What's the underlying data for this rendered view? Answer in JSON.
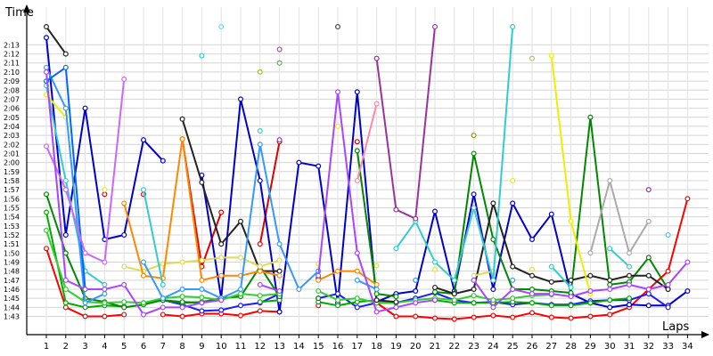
{
  "chart_data": {
    "type": "line",
    "ylabel": "Time",
    "xlabel": "Laps",
    "x": [
      1,
      2,
      3,
      4,
      5,
      6,
      7,
      8,
      9,
      10,
      11,
      12,
      13,
      14,
      15,
      16,
      17,
      18,
      19,
      20,
      21,
      22,
      23,
      24,
      25,
      26,
      27,
      28,
      29,
      30,
      31,
      32,
      33,
      34
    ],
    "x_ticks": [
      "1",
      "2",
      "3",
      "4",
      "5",
      "6",
      "7",
      "8",
      "9",
      "10",
      "11",
      "12",
      "13",
      "14",
      "15",
      "16",
      "17",
      "18",
      "19",
      "20",
      "21",
      "22",
      "23",
      "24",
      "25",
      "26",
      "27",
      "28",
      "29",
      "30",
      "31",
      "32",
      "33",
      "34"
    ],
    "y_ticks": [
      "1:43",
      "1:44",
      "1:45",
      "1:46",
      "1:47",
      "1:48",
      "1:49",
      "1:50",
      "1:51",
      "1:52",
      "1:53",
      "1:54",
      "1:55",
      "1:56",
      "1:57",
      "1:58",
      "1:59",
      "2:00",
      "2:01",
      "2:02",
      "2:03",
      "2:04",
      "2:05",
      "2:06",
      "2:07",
      "2:08",
      "2:09",
      "2:10",
      "2:11",
      "2:12",
      "2:13"
    ],
    "ylim_seconds": [
      102,
      134
    ],
    "grid": true,
    "series": [
      {
        "color": "#ff0000",
        "values": [
          110.5,
          104,
          103,
          103,
          103.2,
          null,
          103.2,
          103,
          103.3,
          103.3,
          103.1,
          103.6,
          103.5,
          null,
          104.2,
          null,
          null,
          104.5,
          103,
          103,
          102.8,
          102.7,
          102.9,
          103.1,
          102.9,
          103.4,
          102.9,
          102.8,
          103,
          103.2,
          104,
          106,
          108,
          116
        ]
      },
      {
        "color": "#e00000",
        "values": [
          null,
          null,
          null,
          116.5,
          null,
          116.5,
          null,
          122.6,
          108.5,
          114.5,
          null,
          111,
          122.3,
          null,
          null,
          null,
          122.3,
          null,
          null,
          null,
          null,
          null,
          null,
          null,
          null,
          null,
          null,
          null,
          null,
          null,
          null,
          null,
          null,
          null
        ]
      },
      {
        "color": "#0000cc",
        "values": [
          133.8,
          112,
          126,
          111.5,
          112,
          122.5,
          120.2,
          null,
          118.6,
          105,
          127,
          118,
          103.5,
          120,
          119.6,
          104.5,
          127.8,
          104.6,
          105.5,
          105.8,
          114.6,
          105.8,
          116.5,
          106,
          115.5,
          111.5,
          114.3,
          105.5,
          104.5,
          104,
          104.3,
          104.2,
          104.2,
          105.8
        ]
      },
      {
        "color": "#1a1aff",
        "values": [
          null,
          null,
          null,
          null,
          null,
          104.5,
          104.8,
          104.3,
          103.6,
          103.7,
          104.2,
          104.5,
          105.5,
          null,
          105,
          105.5,
          104,
          104.5,
          104.5,
          105,
          105.6,
          104.8,
          104.5,
          104.6,
          104.3,
          104.5,
          104.3,
          104.3,
          104.7,
          104.8,
          104.8,
          105.5,
          104,
          null
        ]
      },
      {
        "color": "#00aa00",
        "values": [
          114.5,
          104.5,
          104,
          104.2,
          104.1,
          null,
          104.8,
          104.5,
          104.6,
          105,
          null,
          104.6,
          104.8,
          null,
          104.6,
          104.2,
          104.6,
          104.8,
          104.5,
          null,
          104.8,
          104.5,
          104.5,
          104.5,
          104.6,
          104.5,
          104.2,
          104.2,
          104.5,
          104.8,
          105,
          null,
          null,
          null
        ]
      },
      {
        "color": "#008800",
        "values": [
          116.5,
          110,
          105,
          104.6,
          104,
          104.3,
          104.8,
          104.6,
          104.5,
          105,
          105.2,
          108.5,
          105.2,
          null,
          105,
          null,
          121.3,
          105.5,
          105.2,
          null,
          105.7,
          105.5,
          121,
          111.5,
          106,
          106,
          105.8,
          105.6,
          125,
          106.5,
          106.8,
          109.5,
          106,
          null
        ]
      },
      {
        "color": "#33cc33",
        "values": [
          112.5,
          106,
          104.6,
          104.5,
          104.6,
          104.5,
          105,
          105.2,
          105.1,
          104.8,
          105.5,
          105.3,
          105.5,
          null,
          105.8,
          104.8,
          105,
          104.5,
          104.5,
          104.8,
          105,
          104.8,
          105.3,
          104.8,
          105,
          105.3,
          105.4,
          null,
          null,
          null,
          null,
          null,
          null,
          null
        ]
      },
      {
        "color": "#222222",
        "values": [
          135,
          132,
          null,
          null,
          null,
          null,
          null,
          124.8,
          117.8,
          111,
          113.5,
          108,
          108,
          null,
          107.2,
          null,
          null,
          104.8,
          104.6,
          null,
          106.2,
          105.5,
          106,
          115.5,
          108.5,
          107.5,
          106.8,
          107,
          107.5,
          107,
          107.5,
          107.5,
          106,
          null
        ]
      },
      {
        "color": "#444444",
        "values": [
          null,
          null,
          null,
          null,
          null,
          null,
          null,
          null,
          null,
          null,
          null,
          null,
          null,
          null,
          null,
          135,
          null,
          null,
          null,
          null,
          null,
          null,
          null,
          null,
          null,
          null,
          null,
          null,
          null,
          null,
          null,
          null,
          null,
          null
        ]
      },
      {
        "color": "#999900",
        "values": [
          null,
          null,
          null,
          null,
          null,
          null,
          null,
          null,
          null,
          null,
          null,
          null,
          null,
          null,
          null,
          null,
          null,
          null,
          null,
          null,
          null,
          null,
          123,
          null,
          135,
          null,
          null,
          null,
          null,
          null,
          null,
          null,
          null,
          null
        ]
      },
      {
        "color": "#eeee00",
        "values": [
          127.5,
          125,
          null,
          117,
          null,
          null,
          null,
          null,
          null,
          null,
          null,
          null,
          null,
          null,
          null,
          124,
          null,
          null,
          null,
          null,
          null,
          null,
          null,
          null,
          118,
          null,
          131.8,
          113.5,
          105.5,
          null,
          null,
          null,
          null,
          null
        ]
      },
      {
        "color": "#dddd55",
        "values": [
          null,
          null,
          null,
          null,
          108.5,
          108,
          108.8,
          109,
          109.2,
          109.5,
          109.5,
          108.5,
          109.2,
          null,
          108.8,
          null,
          null,
          108.6,
          null,
          null,
          108.2,
          null,
          107.5,
          108,
          null,
          108.2,
          null,
          null,
          null,
          null,
          null,
          null,
          null,
          null
        ]
      },
      {
        "color": "#ff8800",
        "values": [
          null,
          null,
          null,
          null,
          115.5,
          107.5,
          107.2,
          122.6,
          107,
          107.5,
          107.5,
          108,
          107.5,
          null,
          107,
          108,
          108,
          106.5,
          null,
          null,
          null,
          null,
          null,
          null,
          null,
          null,
          null,
          null,
          null,
          null,
          null,
          null,
          null,
          null
        ]
      },
      {
        "color": "#33cccc",
        "values": [
          128.5,
          118,
          108,
          106.5,
          null,
          117,
          106.5,
          null,
          131.8,
          null,
          null,
          123.5,
          null,
          null,
          108,
          null,
          null,
          null,
          110.5,
          113.5,
          109,
          107,
          115,
          107,
          135,
          null,
          108.5,
          106.2,
          null,
          110.5,
          108.5,
          null,
          112,
          null
        ]
      },
      {
        "color": "#66dddd",
        "values": [
          null,
          null,
          null,
          null,
          null,
          null,
          null,
          null,
          null,
          135,
          null,
          null,
          null,
          null,
          null,
          null,
          null,
          null,
          null,
          null,
          null,
          null,
          null,
          null,
          null,
          null,
          null,
          null,
          null,
          null,
          null,
          null,
          null,
          null
        ]
      },
      {
        "color": "#3399ff",
        "values": [
          130.5,
          126,
          104.5,
          105.5,
          null,
          109,
          105,
          106,
          106,
          105,
          106,
          122,
          111,
          106,
          108,
          null,
          107,
          106,
          null,
          107,
          null,
          null,
          107,
          null,
          107,
          null,
          null,
          null,
          null,
          null,
          null,
          null,
          null,
          null
        ]
      },
      {
        "color": "#0066ff",
        "values": [
          129,
          130.5,
          106,
          null,
          null,
          null,
          null,
          null,
          null,
          null,
          null,
          null,
          null,
          null,
          null,
          null,
          null,
          null,
          null,
          null,
          null,
          null,
          null,
          null,
          null,
          null,
          null,
          null,
          null,
          null,
          null,
          null,
          null,
          null
        ]
      },
      {
        "color": "#cc66ff",
        "values": [
          121.8,
          117,
          110,
          109,
          129.2,
          null,
          null,
          null,
          null,
          null,
          null,
          null,
          null,
          null,
          null,
          null,
          null,
          null,
          null,
          null,
          null,
          null,
          null,
          null,
          null,
          null,
          null,
          null,
          null,
          null,
          null,
          null,
          null,
          null
        ]
      },
      {
        "color": "#aa44ff",
        "values": [
          130,
          107,
          106,
          106,
          106.5,
          103.2,
          104,
          104,
          104.5,
          104.8,
          null,
          106.5,
          105.8,
          null,
          107.5,
          127.8,
          110,
          103.5,
          104,
          104.5,
          104.8,
          null,
          107,
          104,
          106,
          105.5,
          105.5,
          105.2,
          105.8,
          106,
          106.5,
          106,
          106.5,
          109
        ]
      },
      {
        "color": "#9933cc",
        "values": [
          null,
          null,
          null,
          null,
          null,
          null,
          null,
          null,
          null,
          null,
          null,
          null,
          122.5,
          null,
          null,
          null,
          null,
          null,
          null,
          null,
          null,
          null,
          null,
          null,
          null,
          null,
          null,
          null,
          null,
          null,
          null,
          null,
          null,
          null
        ]
      },
      {
        "color": "#993399",
        "values": [
          null,
          null,
          null,
          null,
          null,
          null,
          null,
          null,
          null,
          null,
          null,
          null,
          null,
          null,
          null,
          null,
          null,
          131.5,
          114.8,
          113.8,
          135,
          null,
          null,
          null,
          null,
          null,
          null,
          null,
          null,
          null,
          null,
          117,
          null,
          null
        ]
      },
      {
        "color": "#cc33cc",
        "values": [
          null,
          null,
          null,
          null,
          null,
          null,
          null,
          null,
          null,
          null,
          null,
          null,
          132.5,
          null,
          null,
          null,
          null,
          null,
          null,
          null,
          null,
          null,
          null,
          null,
          null,
          null,
          null,
          null,
          null,
          null,
          null,
          null,
          null,
          null
        ]
      },
      {
        "color": "#ff88aa",
        "values": [
          null,
          null,
          null,
          null,
          null,
          null,
          null,
          null,
          null,
          null,
          null,
          null,
          null,
          null,
          null,
          null,
          118,
          126.5,
          null,
          null,
          null,
          null,
          null,
          null,
          null,
          null,
          null,
          null,
          null,
          null,
          null,
          null,
          null,
          null
        ]
      },
      {
        "color": "#aaaaaa",
        "values": [
          null,
          null,
          null,
          null,
          null,
          null,
          null,
          null,
          null,
          null,
          null,
          null,
          null,
          null,
          null,
          null,
          null,
          null,
          null,
          null,
          null,
          null,
          null,
          null,
          null,
          null,
          null,
          null,
          110,
          118,
          110,
          113.5,
          null,
          null
        ]
      },
      {
        "color": "#bbbb66",
        "values": [
          null,
          null,
          null,
          null,
          null,
          null,
          null,
          null,
          null,
          null,
          null,
          null,
          null,
          null,
          null,
          null,
          null,
          null,
          null,
          null,
          null,
          null,
          null,
          null,
          null,
          131.5,
          null,
          null,
          null,
          null,
          null,
          null,
          null,
          null
        ]
      },
      {
        "color": "#88cc00",
        "values": [
          null,
          null,
          null,
          null,
          null,
          null,
          null,
          null,
          null,
          null,
          null,
          130,
          null,
          null,
          null,
          null,
          null,
          null,
          null,
          null,
          null,
          null,
          null,
          null,
          null,
          null,
          null,
          null,
          null,
          null,
          null,
          null,
          null,
          null
        ]
      },
      {
        "color": "#66aa66",
        "values": [
          null,
          null,
          null,
          null,
          null,
          null,
          null,
          null,
          null,
          null,
          null,
          null,
          131,
          null,
          null,
          null,
          null,
          null,
          null,
          null,
          null,
          null,
          null,
          null,
          null,
          null,
          null,
          null,
          null,
          null,
          null,
          null,
          null,
          null
        ]
      },
      {
        "color": "#aaccff",
        "values": [
          null,
          null,
          null,
          null,
          null,
          null,
          null,
          null,
          null,
          null,
          null,
          null,
          null,
          null,
          null,
          null,
          null,
          null,
          null,
          null,
          null,
          null,
          null,
          null,
          null,
          null,
          null,
          null,
          null,
          null,
          null,
          null,
          null,
          null
        ]
      }
    ]
  }
}
